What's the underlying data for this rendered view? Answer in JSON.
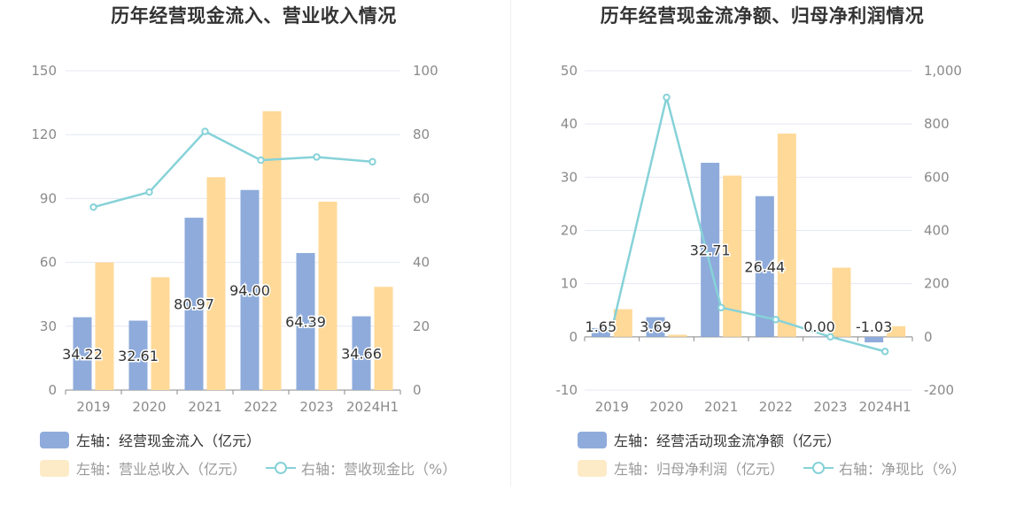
{
  "colors": {
    "bar_primary": "#8eabdb",
    "bar_secondary": "#ffd998",
    "bar_secondary_faded": "#fdebc8",
    "line": "#86d2d8",
    "grid": "#e4e8f2",
    "axis_text": "#8a8a8a",
    "label_text": "#333333"
  },
  "charts": [
    {
      "title": "历年经营现金流入、营业收入情况",
      "legend": {
        "primary": "左轴：经营现金流入（亿元）",
        "secondary": "左轴：营业总收入（亿元）",
        "line": "右轴：营收现金比（%）"
      }
    },
    {
      "title": "历年经营现金流净额、归母净利润情况",
      "legend": {
        "primary": "左轴：经营活动现金流净额（亿元）",
        "secondary": "左轴：归母净利润（亿元）",
        "line": "右轴：净现比（%）"
      }
    }
  ],
  "chart_data": [
    {
      "type": "bar",
      "categories": [
        "2019",
        "2020",
        "2021",
        "2022",
        "2023",
        "2024H1"
      ],
      "left_axis": {
        "ticks": [
          "0",
          "30",
          "60",
          "90",
          "120",
          "150"
        ],
        "ylim": [
          0,
          150
        ]
      },
      "right_axis": {
        "ticks": [
          "0",
          "20",
          "40",
          "60",
          "80",
          "100"
        ],
        "ylim": [
          0,
          100
        ]
      },
      "series": [
        {
          "name": "左轴：经营现金流入（亿元）",
          "type": "bar",
          "axis": "left",
          "values": [
            34.22,
            32.61,
            80.97,
            94.0,
            64.39,
            34.66
          ],
          "labels": [
            "34.22",
            "32.61",
            "80.97",
            "94.00",
            "64.39",
            "34.66"
          ]
        },
        {
          "name": "左轴：营业总收入（亿元）",
          "type": "bar",
          "axis": "left",
          "values": [
            60,
            53,
            100,
            131,
            88.5,
            48.5
          ]
        },
        {
          "name": "右轴：营收现金比（%）",
          "type": "line",
          "axis": "right",
          "values": [
            57.3,
            62,
            81,
            72,
            73,
            71.5
          ]
        }
      ],
      "grid": true,
      "legend_position": "bottom-left"
    },
    {
      "type": "bar",
      "categories": [
        "2019",
        "2020",
        "2021",
        "2022",
        "2023",
        "2024H1"
      ],
      "left_axis": {
        "ticks": [
          "-10",
          "0",
          "10",
          "20",
          "30",
          "40",
          "50"
        ],
        "ylim": [
          -10,
          50
        ]
      },
      "right_axis": {
        "ticks": [
          "-200",
          "0",
          "200",
          "400",
          "600",
          "800",
          "1,000"
        ],
        "ylim": [
          -200,
          1000
        ]
      },
      "series": [
        {
          "name": "左轴：经营活动现金流净额（亿元）",
          "type": "bar",
          "axis": "left",
          "values": [
            1.65,
            3.69,
            32.71,
            26.44,
            0.0,
            -1.03
          ],
          "labels": [
            "1.65",
            "3.69",
            "32.71",
            "26.44",
            "0.00",
            "-1.03"
          ]
        },
        {
          "name": "左轴：归母净利润（亿元）",
          "type": "bar",
          "axis": "left",
          "values": [
            5.2,
            0.4,
            30.3,
            38.2,
            13,
            2.0
          ]
        },
        {
          "name": "右轴：净现比（%）",
          "type": "line",
          "axis": "right",
          "values": [
            30,
            900,
            110,
            65,
            0,
            -55
          ]
        }
      ],
      "grid": true,
      "legend_position": "bottom-left"
    }
  ]
}
